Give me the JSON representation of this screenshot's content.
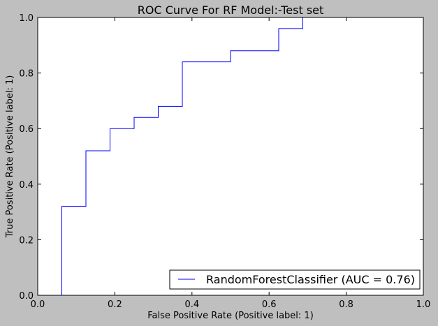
{
  "chart_data": {
    "type": "line",
    "title": "ROC Curve For RF Model:-Test set",
    "xlabel": "False Positive Rate (Positive label: 1)",
    "ylabel": "True Positive Rate (Positive label: 1)",
    "xlim": [
      0.0,
      1.0
    ],
    "ylim": [
      0.0,
      1.0
    ],
    "xticks": [
      "0.0",
      "0.2",
      "0.4",
      "0.6",
      "0.8",
      "1.0"
    ],
    "yticks": [
      "0.0",
      "0.2",
      "0.4",
      "0.6",
      "0.8",
      "1.0"
    ],
    "grid": false,
    "legend_position": "lower-right",
    "series": [
      {
        "name": "RandomForestClassifier (AUC = 0.76)",
        "color": "#0000ff",
        "x": [
          0.0,
          0.0625,
          0.0625,
          0.125,
          0.125,
          0.1875,
          0.1875,
          0.25,
          0.25,
          0.3125,
          0.3125,
          0.375,
          0.375,
          0.5,
          0.5,
          0.625,
          0.625,
          0.6875,
          0.6875,
          1.0
        ],
        "y": [
          0.0,
          0.0,
          0.32,
          0.32,
          0.52,
          0.52,
          0.6,
          0.6,
          0.64,
          0.64,
          0.68,
          0.68,
          0.84,
          0.84,
          0.88,
          0.88,
          0.96,
          0.96,
          1.0,
          1.0
        ]
      }
    ]
  }
}
